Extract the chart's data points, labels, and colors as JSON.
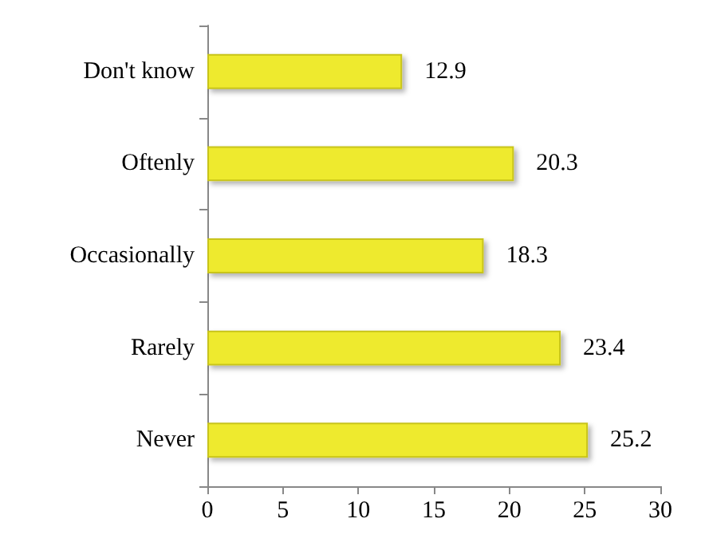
{
  "chart_data": {
    "type": "bar",
    "orientation": "horizontal",
    "categories": [
      "Don't know",
      "Oftenly",
      "Occasionally",
      "Rarely",
      "Never"
    ],
    "values": [
      12.9,
      20.3,
      18.3,
      23.4,
      25.2
    ],
    "color": "#eeea2e",
    "xlim": [
      0,
      30
    ],
    "xticks": [
      0,
      5,
      10,
      15,
      20,
      25,
      30
    ],
    "data_labels": true,
    "grid": false
  }
}
